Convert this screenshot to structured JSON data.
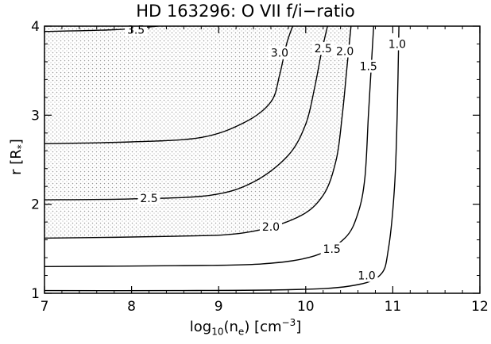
{
  "chart_data": {
    "type": "contour",
    "title": "HD 163296: O VII f/i−ratio",
    "xlabel": "log10(ne) [cm−3]",
    "xlabel_parts": {
      "pre": "log",
      "sub1": "10",
      "mid": "(n",
      "sub2": "e",
      "post": ") [cm",
      "sup": "−3",
      "end": "]"
    },
    "ylabel": "r [R*]",
    "ylabel_parts": {
      "pre": "r [R",
      "sub": "*",
      "post": "]"
    },
    "xlim": [
      7,
      12
    ],
    "ylim": [
      1,
      4
    ],
    "x_ticks": [
      "7",
      "8",
      "9",
      "10",
      "11",
      "12"
    ],
    "y_ticks": [
      "1",
      "2",
      "3",
      "4"
    ],
    "shaded_region": "observed f/i-ratio range (dotted)",
    "shade_color": "#9a9a9a",
    "contours": [
      {
        "label": "1.0",
        "points": [
          [
            7,
            1.03
          ],
          [
            8.5,
            1.03
          ],
          [
            9.8,
            1.04
          ],
          [
            10.5,
            1.08
          ],
          [
            10.85,
            1.2
          ],
          [
            10.95,
            1.5
          ],
          [
            11.02,
            2.2
          ],
          [
            11.05,
            3.0
          ],
          [
            11.07,
            4.0
          ]
        ]
      },
      {
        "label": "1.5",
        "points": [
          [
            7,
            1.3
          ],
          [
            8.5,
            1.31
          ],
          [
            9.5,
            1.33
          ],
          [
            10.1,
            1.42
          ],
          [
            10.45,
            1.62
          ],
          [
            10.6,
            1.9
          ],
          [
            10.68,
            2.3
          ],
          [
            10.72,
            3.0
          ],
          [
            10.75,
            3.5
          ],
          [
            10.78,
            4.0
          ]
        ]
      },
      {
        "label": "2.0",
        "points": [
          [
            7,
            1.62
          ],
          [
            8.5,
            1.64
          ],
          [
            9.3,
            1.68
          ],
          [
            9.9,
            1.85
          ],
          [
            10.2,
            2.1
          ],
          [
            10.35,
            2.5
          ],
          [
            10.42,
            3.0
          ],
          [
            10.47,
            3.5
          ],
          [
            10.52,
            4.0
          ]
        ]
      },
      {
        "label": "2.5",
        "points": [
          [
            7,
            2.05
          ],
          [
            8,
            2.06
          ],
          [
            8.9,
            2.1
          ],
          [
            9.4,
            2.25
          ],
          [
            9.8,
            2.55
          ],
          [
            10.0,
            2.9
          ],
          [
            10.1,
            3.3
          ],
          [
            10.18,
            3.7
          ],
          [
            10.25,
            4.0
          ]
        ]
      },
      {
        "label": "3.0",
        "points": [
          [
            7,
            2.68
          ],
          [
            8,
            2.7
          ],
          [
            8.8,
            2.75
          ],
          [
            9.3,
            2.92
          ],
          [
            9.6,
            3.15
          ],
          [
            9.7,
            3.45
          ],
          [
            9.78,
            3.8
          ],
          [
            9.85,
            4.0
          ]
        ]
      },
      {
        "label": "3.5",
        "points": [
          [
            7,
            3.94
          ],
          [
            7.8,
            3.96
          ],
          [
            8.3,
            4.0
          ]
        ]
      }
    ],
    "contour_labels": [
      {
        "text": "3.5",
        "x": 8.05,
        "y": 3.96
      },
      {
        "text": "3.0",
        "x": 9.7,
        "y": 3.7
      },
      {
        "text": "2.5",
        "x": 10.2,
        "y": 3.75
      },
      {
        "text": "2.0",
        "x": 10.45,
        "y": 3.72
      },
      {
        "text": "1.5",
        "x": 10.72,
        "y": 3.55
      },
      {
        "text": "1.0",
        "x": 11.05,
        "y": 3.8
      },
      {
        "text": "2.5",
        "x": 8.2,
        "y": 2.07
      },
      {
        "text": "2.0",
        "x": 9.6,
        "y": 1.75
      },
      {
        "text": "1.5",
        "x": 10.3,
        "y": 1.5
      },
      {
        "text": "1.0",
        "x": 10.7,
        "y": 1.2
      }
    ],
    "grid": false,
    "legend": "none"
  }
}
